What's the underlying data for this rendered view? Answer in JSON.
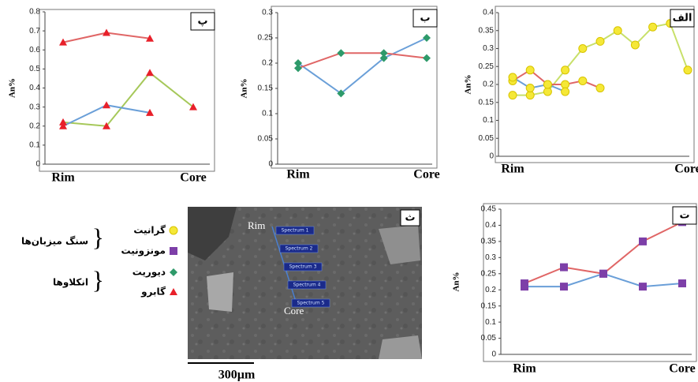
{
  "chart_data": [
    {
      "type": "line",
      "title": "پ",
      "y_label": "An%",
      "categories": [
        "Rim",
        null,
        null,
        "Core"
      ],
      "marker": "triangle",
      "marker_color": "#e8202a",
      "series": [
        {
          "color": "#e06666",
          "values": [
            0.64,
            0.69,
            0.66,
            null
          ]
        },
        {
          "color": "#a6c85a",
          "values": [
            0.22,
            0.2,
            0.48,
            0.3
          ]
        },
        {
          "color": "#6a9fd8",
          "values": [
            0.2,
            0.31,
            0.27,
            null
          ]
        }
      ],
      "ylim": [
        0,
        0.8
      ],
      "yticks": [
        0,
        0.1,
        0.2,
        0.3,
        0.4,
        0.5,
        0.6,
        0.7,
        0.8
      ]
    },
    {
      "type": "line",
      "title": "ب",
      "y_label": "An%",
      "categories": [
        "Rim",
        null,
        null,
        "Core"
      ],
      "marker": "diamond",
      "marker_color": "#2e9a6a",
      "series": [
        {
          "color": "#6a9fd8",
          "values": [
            0.2,
            0.14,
            0.21,
            0.25
          ]
        },
        {
          "color": "#e06666",
          "values": [
            0.19,
            0.22,
            0.22,
            0.21
          ]
        }
      ],
      "ylim": [
        0,
        0.3
      ],
      "yticks": [
        0,
        0.05,
        0.1,
        0.15,
        0.2,
        0.25,
        0.3
      ]
    },
    {
      "type": "line",
      "title": "الف",
      "y_label": "An%",
      "categories": [
        "Rim",
        null,
        null,
        null,
        null,
        null,
        null,
        null,
        null,
        null,
        "Core"
      ],
      "marker": "circle",
      "marker_color": "#f5e837",
      "series": [
        {
          "color": "#c8e06a",
          "values": [
            0.17,
            0.17,
            0.18,
            0.24,
            0.3,
            0.32,
            0.35,
            0.31,
            0.36,
            0.37,
            0.24
          ]
        },
        {
          "color": "#e06666",
          "values": [
            0.21,
            0.24,
            0.2,
            0.2,
            0.21,
            0.19,
            null,
            null,
            null,
            null,
            null
          ]
        },
        {
          "color": "#6a9fd8",
          "values": [
            0.22,
            0.19,
            0.2,
            0.18,
            null,
            null,
            null,
            null,
            null,
            null,
            null
          ]
        }
      ],
      "ylim": [
        0,
        0.4
      ],
      "yticks": [
        0,
        0.05,
        0.1,
        0.15,
        0.2,
        0.25,
        0.3,
        0.35,
        0.4
      ]
    },
    {
      "type": "line",
      "title": "ت",
      "y_label": "An%",
      "categories": [
        "Rim",
        null,
        null,
        null,
        "Core"
      ],
      "marker": "square",
      "marker_color": "#7d3fa8",
      "series": [
        {
          "color": "#e06666",
          "values": [
            0.22,
            0.27,
            0.25,
            0.35,
            0.41
          ]
        },
        {
          "color": "#6a9fd8",
          "values": [
            0.21,
            0.21,
            0.25,
            0.21,
            0.22
          ]
        }
      ],
      "ylim": [
        0,
        0.45
      ],
      "yticks": [
        0,
        0.05,
        0.1,
        0.15,
        0.2,
        0.25,
        0.3,
        0.35,
        0.4,
        0.45
      ]
    }
  ],
  "image_panel": {
    "title": "ث",
    "rim_label": "Rim",
    "core_label": "Core",
    "spectra": [
      "Spectrum 1",
      "Spectrum 2",
      "Spectrum 3",
      "Spectrum 4",
      "Spectrum 5"
    ],
    "scale": "300µm"
  },
  "legend": {
    "items": [
      {
        "label": "گرانیت",
        "marker": "circle",
        "color": "#f5e837"
      },
      {
        "label": "مونزونیت",
        "marker": "square",
        "color": "#7d3fa8"
      },
      {
        "label": "دیوریت",
        "marker": "diamond",
        "color": "#2e9a6a"
      },
      {
        "label": "گابرو",
        "marker": "triangle",
        "color": "#e8202a"
      }
    ],
    "groups": [
      "سنگ میزبان‌ها",
      "انکلاوها"
    ]
  }
}
